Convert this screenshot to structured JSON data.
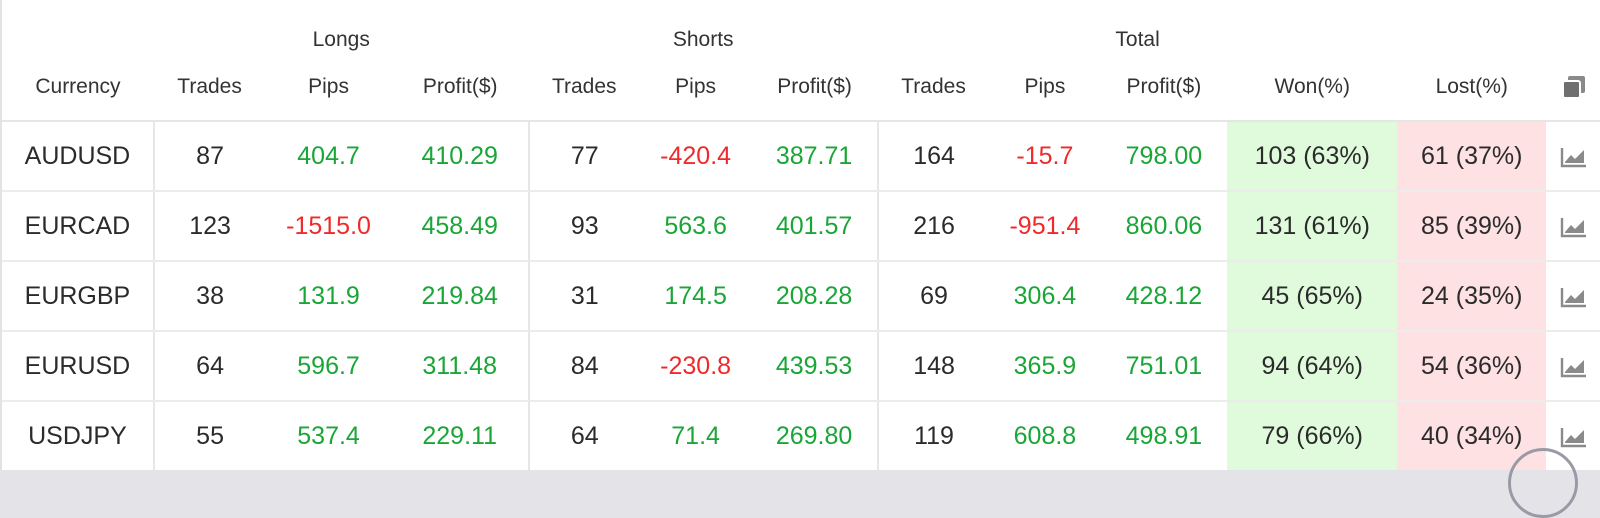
{
  "groups": {
    "longs": "Longs",
    "shorts": "Shorts",
    "total": "Total"
  },
  "columns": {
    "currency": "Currency",
    "long_trades": "Trades",
    "long_pips": "Pips",
    "long_profit": "Profit($)",
    "short_trades": "Trades",
    "short_pips": "Pips",
    "short_profit": "Profit($)",
    "total_trades": "Trades",
    "total_pips": "Pips",
    "total_profit": "Profit($)",
    "won": "Won(%)",
    "lost": "Lost(%)"
  },
  "header_icon": "copy-icon",
  "row_icon": "chart-icon",
  "colors": {
    "positive": "#1aa637",
    "negative": "#f0292c",
    "won_bg": "#dffbdc",
    "lost_bg": "#fde1e3"
  },
  "rows": [
    {
      "currency": "AUDUSD",
      "long_trades": "87",
      "long_pips": "404.7",
      "long_profit": "410.29",
      "short_trades": "77",
      "short_pips": "-420.4",
      "short_profit": "387.71",
      "total_trades": "164",
      "total_pips": "-15.7",
      "total_profit": "798.00",
      "won": "103 (63%)",
      "lost": "61 (37%)"
    },
    {
      "currency": "EURCAD",
      "long_trades": "123",
      "long_pips": "-1515.0",
      "long_profit": "458.49",
      "short_trades": "93",
      "short_pips": "563.6",
      "short_profit": "401.57",
      "total_trades": "216",
      "total_pips": "-951.4",
      "total_profit": "860.06",
      "won": "131 (61%)",
      "lost": "85 (39%)"
    },
    {
      "currency": "EURGBP",
      "long_trades": "38",
      "long_pips": "131.9",
      "long_profit": "219.84",
      "short_trades": "31",
      "short_pips": "174.5",
      "short_profit": "208.28",
      "total_trades": "69",
      "total_pips": "306.4",
      "total_profit": "428.12",
      "won": "45 (65%)",
      "lost": "24 (35%)"
    },
    {
      "currency": "EURUSD",
      "long_trades": "64",
      "long_pips": "596.7",
      "long_profit": "311.48",
      "short_trades": "84",
      "short_pips": "-230.8",
      "short_profit": "439.53",
      "total_trades": "148",
      "total_pips": "365.9",
      "total_profit": "751.01",
      "won": "94 (64%)",
      "lost": "54 (36%)"
    },
    {
      "currency": "USDJPY",
      "long_trades": "55",
      "long_pips": "537.4",
      "long_profit": "229.11",
      "short_trades": "64",
      "short_pips": "71.4",
      "short_profit": "269.80",
      "total_trades": "119",
      "total_pips": "608.8",
      "total_profit": "498.91",
      "won": "79 (66%)",
      "lost": "40 (34%)"
    }
  ]
}
